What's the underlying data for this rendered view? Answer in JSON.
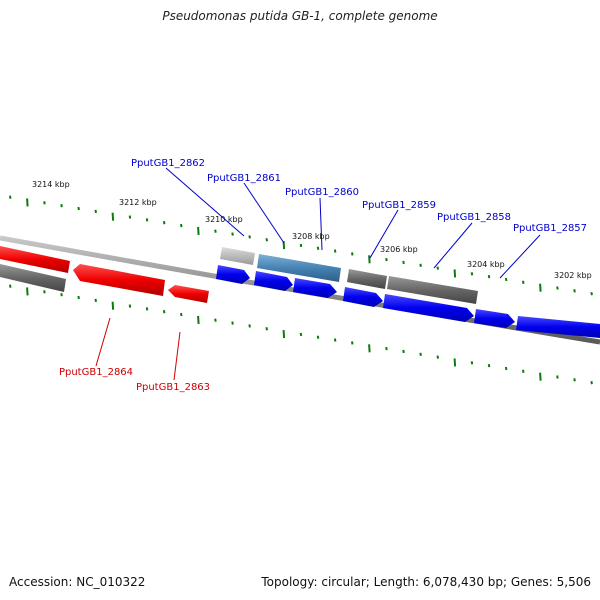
{
  "title": "Pseudomonas putida GB-1, complete genome",
  "footer": {
    "accession": "Accession: NC_010322",
    "info": "Topology: circular; Length: 6,078,430 bp; Genes: 5,506"
  },
  "colors": {
    "backbone": "#8a8a8a",
    "tick": "#0d7a0d",
    "forward_cds": "#0000ee",
    "reverse_red": "#ee0000",
    "gene_gray": "#666666",
    "gene_light_gray": "#bbbbbb",
    "gene_steel_blue": "#4682b4",
    "label_blue": "#0000cc",
    "label_red": "#cc0000"
  },
  "scale_labels": [
    "3214 kbp",
    "3212 kbp",
    "3210 kbp",
    "3208 kbp",
    "3206 kbp",
    "3204 kbp",
    "3202 kbp"
  ],
  "gene_labels_top": [
    "PputGB1_2862",
    "PputGB1_2861",
    "PputGB1_2860",
    "PputGB1_2859",
    "PputGB1_2858",
    "PputGB1_2857"
  ],
  "gene_labels_bottom": [
    "PputGB1_2864",
    "PputGB1_2863"
  ]
}
